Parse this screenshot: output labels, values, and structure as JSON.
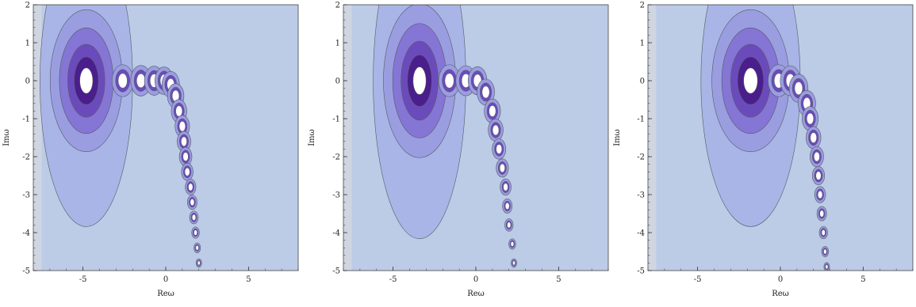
{
  "chart_data": [
    {
      "type": "contour",
      "xlabel": "Reω",
      "ylabel": "Imω",
      "xlim": [
        -8,
        8
      ],
      "ylim": [
        -5,
        2
      ],
      "x_ticks": [
        -5,
        0,
        5
      ],
      "y_ticks": [
        2,
        1,
        0,
        -1,
        -2,
        -3,
        -4,
        -5
      ],
      "level_colors": [
        "#bccbe6",
        "#a9b5e6",
        "#9a9ee0",
        "#8575d4",
        "#6b4bbb",
        "#4a1e8c",
        "#ffffff"
      ],
      "main_peak": {
        "x": -4.8,
        "y": 0,
        "rx": 2.8,
        "ry": 2.4
      },
      "poles": [
        {
          "x": -2.6,
          "y": 0.0
        },
        {
          "x": -1.5,
          "y": 0.0
        },
        {
          "x": -0.7,
          "y": 0.0
        },
        {
          "x": -0.1,
          "y": 0.0
        },
        {
          "x": 0.3,
          "y": -0.1
        },
        {
          "x": 0.6,
          "y": -0.4
        },
        {
          "x": 0.8,
          "y": -0.8
        },
        {
          "x": 1.0,
          "y": -1.2
        },
        {
          "x": 1.1,
          "y": -1.6
        },
        {
          "x": 1.2,
          "y": -2.0
        },
        {
          "x": 1.3,
          "y": -2.4
        },
        {
          "x": 1.5,
          "y": -2.8
        },
        {
          "x": 1.6,
          "y": -3.2
        },
        {
          "x": 1.7,
          "y": -3.6
        },
        {
          "x": 1.8,
          "y": -4.0
        },
        {
          "x": 1.9,
          "y": -4.4
        },
        {
          "x": 2.0,
          "y": -4.8
        }
      ]
    },
    {
      "type": "contour",
      "xlabel": "Reω",
      "ylabel": "Imω",
      "xlim": [
        -8,
        8
      ],
      "ylim": [
        -5,
        2
      ],
      "x_ticks": [
        -5,
        0,
        5
      ],
      "y_ticks": [
        2,
        1,
        0,
        -1,
        -2,
        -3,
        -4,
        -5
      ],
      "level_colors": [
        "#bccbe6",
        "#a9b5e6",
        "#9a9ee0",
        "#8575d4",
        "#6b4bbb",
        "#4a1e8c",
        "#ffffff"
      ],
      "main_peak": {
        "x": -3.4,
        "y": 0,
        "rx": 2.8,
        "ry": 2.6
      },
      "poles": [
        {
          "x": -1.6,
          "y": 0.0
        },
        {
          "x": -0.6,
          "y": 0.0
        },
        {
          "x": 0.1,
          "y": 0.0
        },
        {
          "x": 0.6,
          "y": -0.3
        },
        {
          "x": 1.0,
          "y": -0.8
        },
        {
          "x": 1.2,
          "y": -1.3
        },
        {
          "x": 1.4,
          "y": -1.8
        },
        {
          "x": 1.6,
          "y": -2.3
        },
        {
          "x": 1.8,
          "y": -2.8
        },
        {
          "x": 1.9,
          "y": -3.3
        },
        {
          "x": 2.0,
          "y": -3.8
        },
        {
          "x": 2.2,
          "y": -4.3
        },
        {
          "x": 2.3,
          "y": -4.8
        }
      ]
    },
    {
      "type": "contour",
      "xlabel": "Reω",
      "ylabel": "Imω",
      "xlim": [
        -8,
        8
      ],
      "ylim": [
        -5,
        2
      ],
      "x_ticks": [
        -5,
        0,
        5
      ],
      "y_ticks": [
        2,
        1,
        0,
        -1,
        -2,
        -3,
        -4,
        -5
      ],
      "level_colors": [
        "#bccbe6",
        "#a9b5e6",
        "#9a9ee0",
        "#8575d4",
        "#6b4bbb",
        "#4a1e8c",
        "#ffffff"
      ],
      "main_peak": {
        "x": -1.8,
        "y": 0,
        "rx": 3.0,
        "ry": 2.4
      },
      "poles": [
        {
          "x": -0.1,
          "y": 0.0
        },
        {
          "x": 0.6,
          "y": 0.0
        },
        {
          "x": 1.1,
          "y": -0.2
        },
        {
          "x": 1.6,
          "y": -0.6
        },
        {
          "x": 1.8,
          "y": -1.0
        },
        {
          "x": 2.0,
          "y": -1.5
        },
        {
          "x": 2.2,
          "y": -2.0
        },
        {
          "x": 2.3,
          "y": -2.5
        },
        {
          "x": 2.4,
          "y": -3.0
        },
        {
          "x": 2.5,
          "y": -3.5
        },
        {
          "x": 2.6,
          "y": -4.0
        },
        {
          "x": 2.7,
          "y": -4.5
        },
        {
          "x": 2.8,
          "y": -4.9
        }
      ]
    }
  ]
}
